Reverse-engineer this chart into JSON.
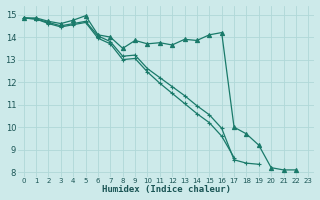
{
  "bg_color": "#cdeaea",
  "grid_color": "#b0d8d8",
  "line_color": "#1a7a6a",
  "xlabel": "Humidex (Indice chaleur)",
  "xlim": [
    -0.5,
    23.5
  ],
  "ylim": [
    7.8,
    15.4
  ],
  "xticks": [
    0,
    1,
    2,
    3,
    4,
    5,
    6,
    7,
    8,
    9,
    10,
    11,
    12,
    13,
    14,
    15,
    16,
    17,
    18,
    19,
    20,
    21,
    22,
    23
  ],
  "yticks": [
    8,
    9,
    10,
    11,
    12,
    13,
    14,
    15
  ],
  "series": [
    {
      "x": [
        0,
        1,
        2,
        3,
        4,
        5,
        6,
        7,
        8,
        9,
        10,
        11,
        12,
        13,
        14,
        15,
        16,
        17,
        18,
        19,
        20,
        21,
        22
      ],
      "y": [
        14.85,
        14.85,
        14.7,
        14.6,
        14.75,
        14.95,
        14.1,
        14.0,
        13.5,
        13.85,
        13.7,
        13.75,
        13.65,
        13.9,
        13.85,
        14.1,
        14.2,
        10.0,
        9.7,
        9.2,
        8.2,
        8.1,
        8.1
      ]
    },
    {
      "x": [
        0,
        1,
        2,
        3,
        4,
        5,
        6,
        7,
        8,
        9,
        10,
        11,
        12,
        13,
        14,
        15,
        16,
        17,
        18,
        19
      ],
      "y": [
        14.85,
        14.8,
        14.65,
        14.5,
        14.6,
        14.7,
        14.05,
        13.8,
        13.15,
        13.2,
        12.6,
        12.2,
        11.8,
        11.4,
        10.95,
        10.55,
        9.95,
        8.55,
        8.4,
        8.35
      ]
    },
    {
      "x": [
        0,
        1,
        2,
        3,
        4,
        5,
        6,
        7,
        8,
        9,
        10,
        11,
        12,
        13,
        14,
        15,
        16,
        17
      ],
      "y": [
        14.85,
        14.8,
        14.6,
        14.45,
        14.55,
        14.65,
        13.95,
        13.7,
        13.0,
        13.05,
        12.45,
        11.95,
        11.5,
        11.05,
        10.6,
        10.2,
        9.6,
        8.65
      ]
    }
  ]
}
